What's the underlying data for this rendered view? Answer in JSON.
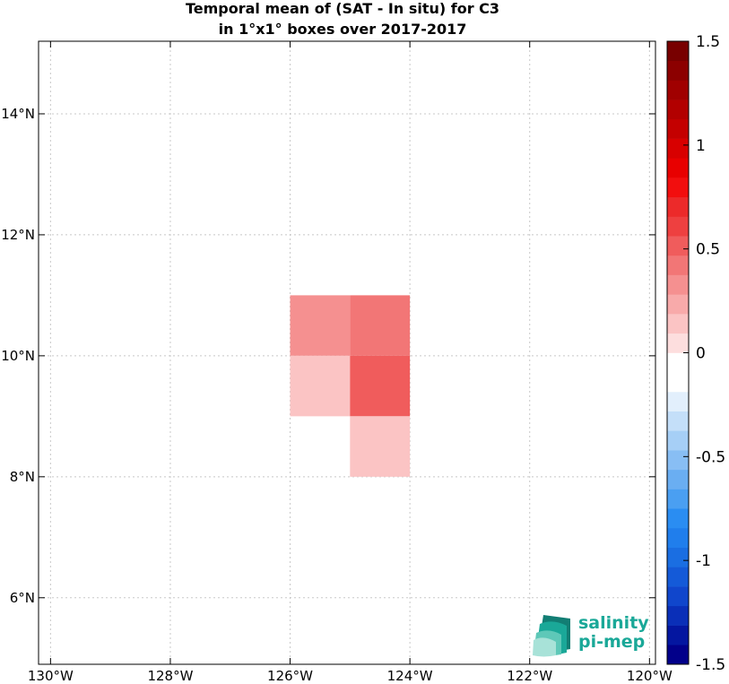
{
  "chart_data": {
    "type": "heatmap",
    "title_lines": [
      "Temporal mean of (SAT - In situ) for C3",
      "in 1°x1° boxes over 2017-2017"
    ],
    "xlabel": "",
    "ylabel": "",
    "xlim": [
      -130.2,
      -119.9
    ],
    "ylim": [
      4.9,
      15.2
    ],
    "grid": true,
    "x_ticks": [
      {
        "value": -130,
        "label": "130°W"
      },
      {
        "value": -128,
        "label": "128°W"
      },
      {
        "value": -126,
        "label": "126°W"
      },
      {
        "value": -124,
        "label": "124°W"
      },
      {
        "value": -122,
        "label": "122°W"
      },
      {
        "value": -120,
        "label": "120°W"
      }
    ],
    "y_ticks": [
      {
        "value": 6,
        "label": "6°N"
      },
      {
        "value": 8,
        "label": "8°N"
      },
      {
        "value": 10,
        "label": "10°N"
      },
      {
        "value": 12,
        "label": "12°N"
      },
      {
        "value": 14,
        "label": "14°N"
      }
    ],
    "cells": [
      {
        "lon0": -126,
        "lon1": -125,
        "lat0": 10,
        "lat1": 11,
        "value": 0.3
      },
      {
        "lon0": -125,
        "lon1": -124,
        "lat0": 10,
        "lat1": 11,
        "value": 0.4
      },
      {
        "lon0": -126,
        "lon1": -125,
        "lat0": 9,
        "lat1": 10,
        "value": 0.15
      },
      {
        "lon0": -125,
        "lon1": -124,
        "lat0": 9,
        "lat1": 10,
        "value": 0.55
      },
      {
        "lon0": -125,
        "lon1": -124,
        "lat0": 8,
        "lat1": 9,
        "value": 0.15
      }
    ],
    "colorbar": {
      "range": [
        -1.5,
        1.5
      ],
      "placement": "right",
      "bands": [
        "#02008a",
        "#0416a0",
        "#0a2fb8",
        "#1046cc",
        "#145ad8",
        "#1a6ee2",
        "#207eec",
        "#2a8df2",
        "#4a9ff2",
        "#6aaef2",
        "#88bef4",
        "#a6cff6",
        "#c4dff9",
        "#e2effc",
        "#ffffff",
        "#ffffff",
        "#fddede",
        "#fbc4c4",
        "#f8aaaa",
        "#f59090",
        "#f27676",
        "#f05c5c",
        "#ee4040",
        "#ec2a2a",
        "#f20e0e",
        "#e80000",
        "#d80000",
        "#c40000",
        "#b20000",
        "#a00000",
        "#8c0000",
        "#780000"
      ],
      "ticks": [
        {
          "value": 1.5,
          "label": "1.5"
        },
        {
          "value": 1,
          "label": "1"
        },
        {
          "value": 0.5,
          "label": "0.5"
        },
        {
          "value": 0,
          "label": "0"
        },
        {
          "value": -0.5,
          "label": "-0.5"
        },
        {
          "value": -1,
          "label": "-1"
        },
        {
          "value": -1.5,
          "label": "-1.5"
        }
      ]
    }
  },
  "logo": {
    "line1": "salinity",
    "line2": "pi-mep",
    "color": "#1aa898"
  }
}
